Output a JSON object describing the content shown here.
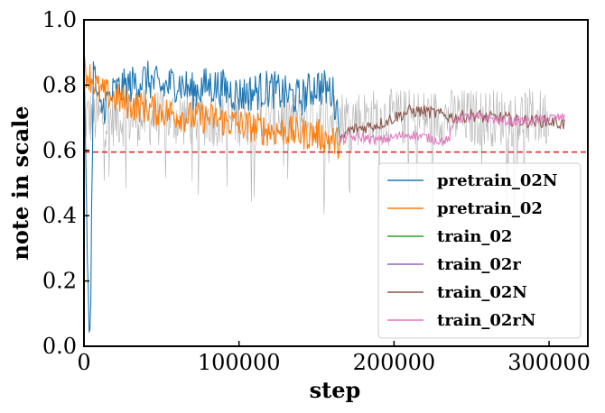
{
  "chart_data": {
    "type": "line",
    "title": "",
    "xlabel": "step",
    "ylabel": "note in scale",
    "xlim": [
      0,
      325000
    ],
    "ylim": [
      0.0,
      1.0
    ],
    "xticks": [
      0,
      100000,
      200000,
      300000
    ],
    "xtick_labels": [
      "0",
      "100000",
      "200000",
      "300000"
    ],
    "yticks": [
      0.0,
      0.2,
      0.4,
      0.6,
      0.8,
      1.0
    ],
    "ytick_labels": [
      "0.0",
      "0.2",
      "0.4",
      "0.6",
      "0.8",
      "1.0"
    ],
    "grid": false,
    "legend_position": "lower right",
    "reference_line": {
      "y": 0.595,
      "color": "#e41a1c",
      "style": "dashed"
    },
    "series": [
      {
        "name": "pretrain_02N",
        "color": "#1f77b4",
        "x": [
          0,
          2000,
          4000,
          6000,
          10000,
          20000,
          30000,
          40000,
          50000,
          60000,
          70000,
          80000,
          90000,
          100000,
          110000,
          120000,
          130000,
          140000,
          150000,
          160000,
          165000
        ],
        "y": [
          0.9,
          0.3,
          0.0,
          0.85,
          0.72,
          0.78,
          0.8,
          0.82,
          0.79,
          0.81,
          0.78,
          0.8,
          0.79,
          0.77,
          0.78,
          0.79,
          0.77,
          0.76,
          0.8,
          0.78,
          0.7
        ],
        "noise": 0.06
      },
      {
        "name": "pretrain_02",
        "color": "#ff7f0e",
        "x": [
          0,
          5000,
          10000,
          20000,
          30000,
          40000,
          50000,
          60000,
          70000,
          80000,
          90000,
          100000,
          110000,
          120000,
          130000,
          140000,
          150000,
          160000,
          166000
        ],
        "y": [
          0.85,
          0.82,
          0.78,
          0.76,
          0.74,
          0.73,
          0.72,
          0.71,
          0.7,
          0.7,
          0.69,
          0.68,
          0.67,
          0.66,
          0.66,
          0.65,
          0.65,
          0.63,
          0.62
        ],
        "noise": 0.05
      },
      {
        "name": "train_02",
        "color": "#2ca02c",
        "x": [],
        "y": [],
        "noise": 0
      },
      {
        "name": "train_02r",
        "color": "#9467bd",
        "x": [],
        "y": [],
        "noise": 0
      },
      {
        "name": "train_02N",
        "color": "#8c564b",
        "x": [
          165000,
          170000,
          180000,
          190000,
          200000,
          210000,
          220000,
          230000,
          240000,
          250000,
          260000,
          270000,
          280000,
          290000,
          300000,
          310000
        ],
        "y": [
          0.62,
          0.66,
          0.67,
          0.68,
          0.7,
          0.72,
          0.72,
          0.71,
          0.7,
          0.71,
          0.7,
          0.7,
          0.69,
          0.69,
          0.69,
          0.68
        ],
        "noise": 0.02
      },
      {
        "name": "train_02rN",
        "color": "#e377c2",
        "x": [
          165000,
          170000,
          180000,
          190000,
          200000,
          210000,
          220000,
          230000,
          235000,
          240000,
          250000,
          260000,
          270000,
          280000,
          290000,
          300000,
          310000
        ],
        "y": [
          0.63,
          0.64,
          0.64,
          0.63,
          0.64,
          0.65,
          0.64,
          0.63,
          0.63,
          0.7,
          0.7,
          0.7,
          0.69,
          0.69,
          0.69,
          0.7,
          0.7
        ],
        "noise": 0.015
      }
    ],
    "background_series": {
      "name": "",
      "color": "#9e9e9e",
      "x_range": [
        0,
        300000
      ],
      "center": 0.7,
      "noise": 0.09
    }
  }
}
